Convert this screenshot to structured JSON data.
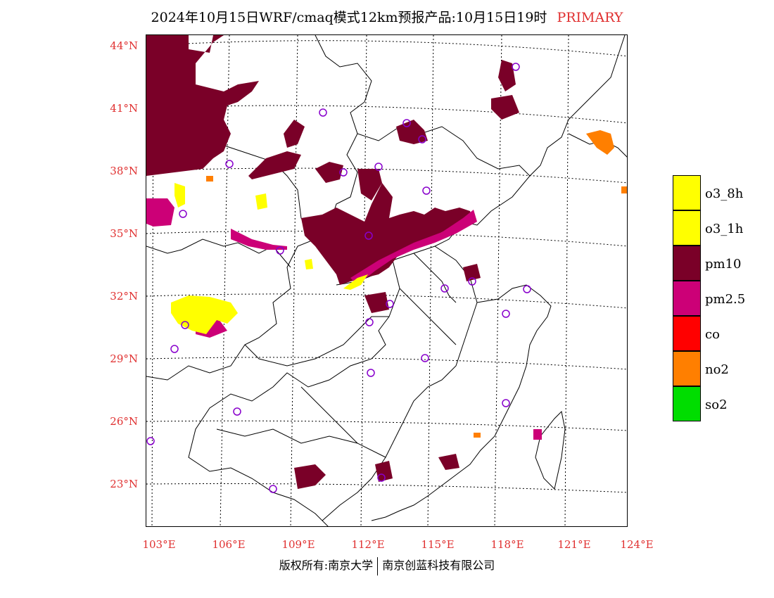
{
  "title": {
    "main": "2024年10月15日WRF/cmaq模式12km预报产品:10月15日19时",
    "tag": "PRIMARY"
  },
  "latitude_labels": [
    "44°N",
    "41°N",
    "38°N",
    "35°N",
    "32°N",
    "29°N",
    "26°N",
    "23°N"
  ],
  "longitude_labels": [
    "103°E",
    "106°E",
    "109°E",
    "112°E",
    "115°E",
    "118°E",
    "121°E",
    "124°E"
  ],
  "legend": [
    {
      "label": "o3_8h",
      "color": "#ffff00"
    },
    {
      "label": "o3_1h",
      "color": "#ffff00"
    },
    {
      "label": "pm10",
      "color": "#7a0028"
    },
    {
      "label": "pm2.5",
      "color": "#cc0077"
    },
    {
      "label": "co",
      "color": "#ff0000"
    },
    {
      "label": "no2",
      "color": "#ff7f00"
    },
    {
      "label": "so2",
      "color": "#00dd00"
    }
  ],
  "copyright": {
    "left": "版权所有:南京大学",
    "right": "南京创蓝科技有限公司"
  }
}
